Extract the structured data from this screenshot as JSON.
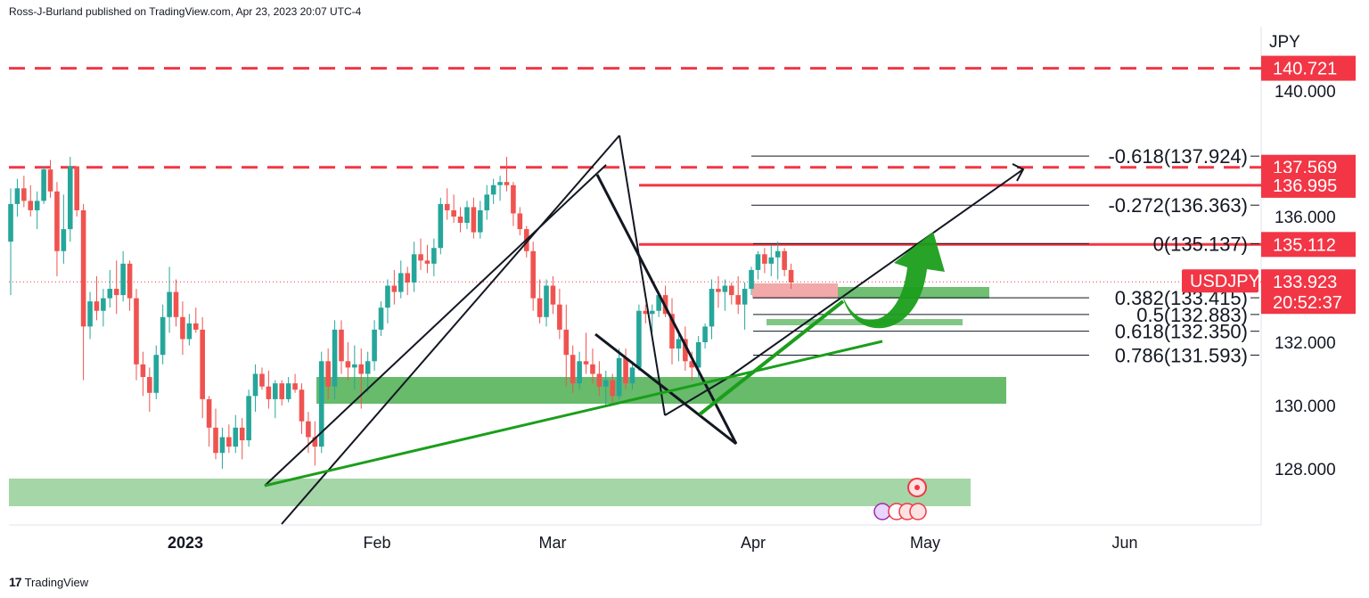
{
  "header": {
    "publisher": "Ross-J-Burland published on TradingView.com, Apr 23, 2023 20:07 UTC-4"
  },
  "footer": {
    "brand": "TradingView",
    "logo": "17"
  },
  "colors": {
    "up": "#26a69a",
    "down": "#ef5350",
    "level": "#f23645",
    "zone": "#4caf50",
    "zone_light": "#a5d6a7",
    "trend": "#1b9e1b"
  },
  "chart_data": {
    "type": "candlestick",
    "symbol": "USDJPY",
    "currency": "JPY",
    "last_price": "133.923",
    "countdown": "20:52:37",
    "ylim": [
      126.0,
      141.8
    ],
    "y_ticks": [
      "140.000",
      "136.000",
      "132.000",
      "130.000",
      "128.000"
    ],
    "x_ticks": [
      "2023",
      "Feb",
      "Mar",
      "Apr",
      "May",
      "Jun"
    ],
    "levels": [
      {
        "price": 140.721,
        "label": "140.721",
        "style": "dashed"
      },
      {
        "price": 137.569,
        "label": "137.569",
        "style": "dashed"
      },
      {
        "price": 136.995,
        "label": "136.995",
        "style": "solid"
      },
      {
        "price": 135.112,
        "label": "135.112",
        "style": "solid"
      }
    ],
    "fibonacci": [
      {
        "ratio": "-0.618",
        "price": "137.924",
        "label": "-0.618(137.924)"
      },
      {
        "ratio": "-0.272",
        "price": "136.363",
        "label": "-0.272(136.363)"
      },
      {
        "ratio": "0",
        "price": "135.137",
        "label": "0(135.137)"
      },
      {
        "ratio": "0.382",
        "price": "133.415",
        "label": "0.382(133.415)"
      },
      {
        "ratio": "0.5",
        "price": "132.883",
        "label": "0.5(132.883)"
      },
      {
        "ratio": "0.618",
        "price": "132.350",
        "label": "0.618(132.350)"
      },
      {
        "ratio": "0.786",
        "price": "131.593",
        "label": "0.786(131.593)"
      }
    ],
    "candles": [
      [
        135.2,
        136.9,
        133.5,
        136.4
      ],
      [
        136.4,
        137.2,
        136.0,
        136.9
      ],
      [
        136.9,
        137.3,
        136.3,
        136.5
      ],
      [
        136.5,
        137.0,
        136.0,
        136.2
      ],
      [
        136.2,
        136.8,
        135.6,
        136.5
      ],
      [
        136.5,
        137.6,
        136.4,
        137.5
      ],
      [
        137.5,
        137.8,
        136.6,
        136.8
      ],
      [
        136.8,
        137.1,
        134.1,
        134.9
      ],
      [
        134.9,
        136.7,
        134.5,
        135.6
      ],
      [
        135.6,
        137.9,
        135.2,
        137.6
      ],
      [
        137.6,
        137.5,
        136.0,
        136.2
      ],
      [
        136.2,
        136.4,
        130.8,
        132.5
      ],
      [
        132.5,
        133.6,
        132.1,
        133.3
      ],
      [
        133.3,
        134.1,
        132.7,
        133.0
      ],
      [
        133.0,
        133.7,
        132.5,
        133.4
      ],
      [
        133.4,
        134.3,
        133.1,
        133.7
      ],
      [
        133.7,
        134.6,
        132.9,
        133.5
      ],
      [
        133.5,
        134.9,
        133.3,
        134.5
      ],
      [
        134.5,
        134.6,
        133.0,
        133.4
      ],
      [
        133.4,
        133.7,
        130.8,
        131.3
      ],
      [
        131.3,
        131.7,
        130.3,
        130.9
      ],
      [
        130.9,
        131.2,
        129.8,
        130.4
      ],
      [
        130.4,
        131.9,
        130.2,
        131.6
      ],
      [
        131.6,
        133.2,
        131.3,
        132.8
      ],
      [
        132.8,
        134.4,
        132.3,
        133.6
      ],
      [
        133.6,
        134.0,
        132.5,
        132.8
      ],
      [
        132.8,
        133.3,
        131.6,
        132.1
      ],
      [
        132.1,
        132.9,
        131.9,
        132.6
      ],
      [
        132.6,
        133.1,
        132.3,
        132.4
      ],
      [
        132.4,
        132.8,
        129.6,
        130.2
      ],
      [
        130.2,
        130.3,
        128.7,
        129.3
      ],
      [
        129.3,
        129.9,
        128.3,
        128.5
      ],
      [
        128.5,
        129.3,
        128.0,
        129.0
      ],
      [
        129.0,
        129.4,
        128.5,
        128.7
      ],
      [
        128.7,
        129.7,
        128.5,
        129.3
      ],
      [
        129.3,
        129.6,
        128.3,
        128.9
      ],
      [
        128.9,
        130.5,
        128.7,
        130.3
      ],
      [
        130.3,
        131.3,
        129.8,
        131.0
      ],
      [
        131.0,
        131.2,
        130.5,
        130.6
      ],
      [
        130.6,
        131.1,
        129.9,
        130.2
      ],
      [
        130.2,
        130.8,
        129.6,
        130.7
      ],
      [
        130.7,
        130.8,
        130.0,
        130.2
      ],
      [
        130.2,
        130.9,
        130.1,
        130.7
      ],
      [
        130.7,
        131.0,
        130.4,
        130.5
      ],
      [
        130.5,
        130.7,
        129.1,
        129.5
      ],
      [
        129.5,
        129.8,
        128.5,
        129.0
      ],
      [
        129.0,
        129.5,
        128.1,
        128.7
      ],
      [
        128.7,
        131.7,
        128.5,
        131.4
      ],
      [
        131.4,
        131.8,
        130.2,
        130.6
      ],
      [
        130.6,
        132.7,
        130.2,
        132.4
      ],
      [
        132.4,
        132.7,
        131.0,
        131.4
      ],
      [
        131.4,
        132.0,
        130.8,
        131.2
      ],
      [
        131.2,
        131.9,
        130.5,
        131.3
      ],
      [
        131.3,
        131.8,
        129.9,
        131.0
      ],
      [
        131.0,
        131.7,
        130.4,
        131.4
      ],
      [
        131.4,
        132.7,
        131.1,
        132.4
      ],
      [
        132.4,
        133.3,
        132.2,
        133.1
      ],
      [
        133.1,
        134.0,
        132.6,
        133.8
      ],
      [
        133.8,
        134.3,
        133.2,
        133.6
      ],
      [
        133.6,
        134.6,
        133.4,
        134.2
      ],
      [
        134.2,
        134.4,
        133.5,
        133.9
      ],
      [
        133.9,
        135.2,
        133.6,
        134.8
      ],
      [
        134.8,
        135.3,
        134.3,
        134.6
      ],
      [
        134.6,
        135.1,
        134.2,
        134.5
      ],
      [
        134.5,
        135.3,
        134.1,
        135.0
      ],
      [
        135.0,
        136.6,
        134.8,
        136.4
      ],
      [
        136.4,
        136.9,
        135.9,
        136.2
      ],
      [
        136.2,
        136.7,
        135.8,
        136.0
      ],
      [
        136.0,
        136.3,
        135.5,
        135.8
      ],
      [
        135.8,
        136.5,
        135.6,
        136.3
      ],
      [
        136.3,
        136.6,
        135.3,
        135.5
      ],
      [
        135.5,
        136.5,
        135.3,
        136.2
      ],
      [
        136.2,
        137.0,
        135.9,
        136.7
      ],
      [
        136.7,
        137.2,
        136.4,
        137.0
      ],
      [
        137.0,
        137.3,
        136.5,
        137.1
      ],
      [
        137.1,
        137.9,
        136.8,
        137.0
      ],
      [
        137.0,
        137.1,
        135.7,
        136.1
      ],
      [
        136.1,
        136.3,
        135.4,
        135.6
      ],
      [
        135.6,
        135.7,
        134.7,
        134.9
      ],
      [
        134.9,
        135.2,
        133.0,
        133.4
      ],
      [
        133.4,
        134.0,
        132.6,
        132.8
      ],
      [
        132.8,
        134.0,
        132.5,
        133.8
      ],
      [
        133.8,
        134.1,
        132.9,
        133.2
      ],
      [
        133.2,
        133.7,
        132.1,
        132.4
      ],
      [
        132.4,
        133.2,
        130.6,
        131.6
      ],
      [
        131.6,
        131.9,
        130.4,
        130.7
      ],
      [
        130.7,
        131.7,
        130.5,
        131.4
      ],
      [
        131.4,
        132.3,
        131.0,
        131.3
      ],
      [
        131.3,
        131.8,
        130.7,
        131.0
      ],
      [
        131.0,
        131.4,
        130.3,
        130.6
      ],
      [
        130.6,
        131.1,
        130.0,
        130.8
      ],
      [
        130.8,
        131.0,
        130.1,
        130.3
      ],
      [
        130.3,
        131.8,
        130.2,
        131.5
      ],
      [
        131.5,
        131.8,
        130.5,
        130.7
      ],
      [
        130.7,
        131.4,
        130.5,
        131.2
      ],
      [
        131.2,
        133.2,
        131.1,
        133.0
      ],
      [
        133.0,
        133.2,
        132.6,
        132.9
      ],
      [
        132.9,
        133.2,
        132.3,
        133.0
      ],
      [
        133.0,
        133.6,
        132.8,
        133.5
      ],
      [
        133.5,
        133.8,
        132.8,
        132.9
      ],
      [
        132.9,
        133.4,
        131.3,
        131.8
      ],
      [
        131.8,
        132.4,
        131.4,
        132.1
      ],
      [
        132.1,
        132.5,
        131.1,
        131.4
      ],
      [
        131.4,
        131.7,
        130.8,
        131.2
      ],
      [
        131.2,
        132.2,
        130.9,
        132.0
      ],
      [
        132.0,
        132.6,
        131.8,
        132.5
      ],
      [
        132.5,
        134.0,
        132.1,
        133.7
      ],
      [
        133.7,
        134.1,
        133.1,
        133.6
      ],
      [
        133.6,
        134.0,
        133.0,
        133.8
      ],
      [
        133.8,
        133.9,
        133.2,
        133.5
      ],
      [
        133.5,
        134.1,
        132.9,
        133.2
      ],
      [
        133.2,
        133.9,
        132.4,
        133.7
      ],
      [
        133.7,
        134.4,
        133.5,
        134.3
      ],
      [
        134.3,
        134.9,
        134.0,
        134.8
      ],
      [
        134.8,
        135.0,
        134.2,
        134.5
      ],
      [
        134.5,
        135.1,
        134.1,
        134.7
      ],
      [
        134.7,
        135.2,
        134.0,
        134.9
      ],
      [
        134.9,
        135.0,
        134.1,
        134.3
      ],
      [
        134.3,
        134.5,
        133.7,
        133.9
      ]
    ]
  }
}
